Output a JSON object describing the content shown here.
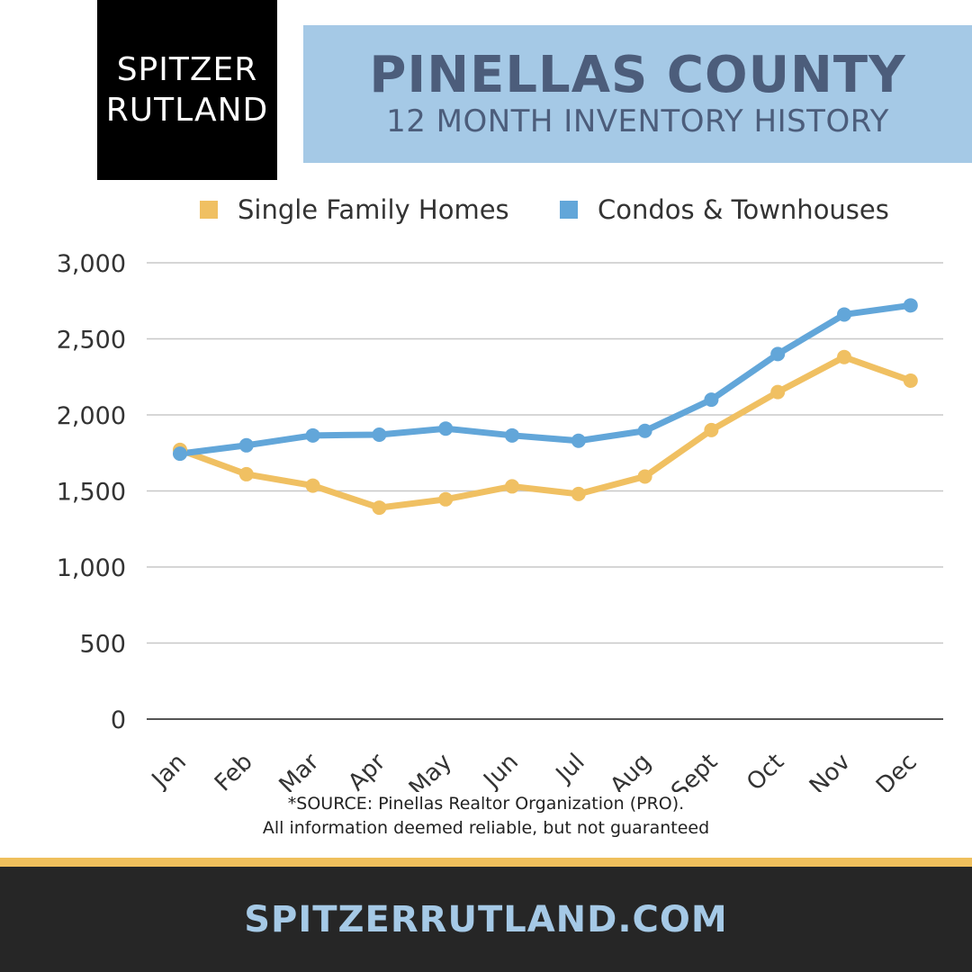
{
  "brand": {
    "line1": "SPITZER",
    "line2": "RUTLAND"
  },
  "header": {
    "title": "PINELLAS COUNTY",
    "subtitle": "12 MONTH INVENTORY HISTORY"
  },
  "colors": {
    "single_family": "#f0c062",
    "condos": "#62a6d9",
    "grid": "#c8c8c8",
    "axis": "#555555",
    "title_text": "#4c5d7b",
    "title_bg": "#a5c9e6",
    "footer_bg": "#262626",
    "gold": "#efbf5c"
  },
  "source": {
    "line1": "*SOURCE: Pinellas Realtor Organization (PRO).",
    "line2": "All information deemed reliable, but not guaranteed"
  },
  "footer": {
    "url": "SPITZERRUTLAND.COM"
  },
  "chart_data": {
    "type": "line",
    "categories": [
      "Jan",
      "Feb",
      "Mar",
      "Apr",
      "May",
      "Jun",
      "Jul",
      "Aug",
      "Sept",
      "Oct",
      "Nov",
      "Dec"
    ],
    "series": [
      {
        "name": "Single Family Homes",
        "values": [
          1770,
          1610,
          1535,
          1390,
          1445,
          1530,
          1480,
          1595,
          1900,
          2150,
          2380,
          2225
        ]
      },
      {
        "name": "Condos & Townhouses",
        "values": [
          1745,
          1800,
          1865,
          1870,
          1910,
          1865,
          1830,
          1895,
          2100,
          2400,
          2660,
          2720
        ]
      }
    ],
    "yticks": [
      "0",
      "500",
      "1,000",
      "1,500",
      "2,000",
      "2,500",
      "3,000"
    ],
    "ylim": [
      0,
      3000
    ],
    "grid": true,
    "legend": "top"
  }
}
